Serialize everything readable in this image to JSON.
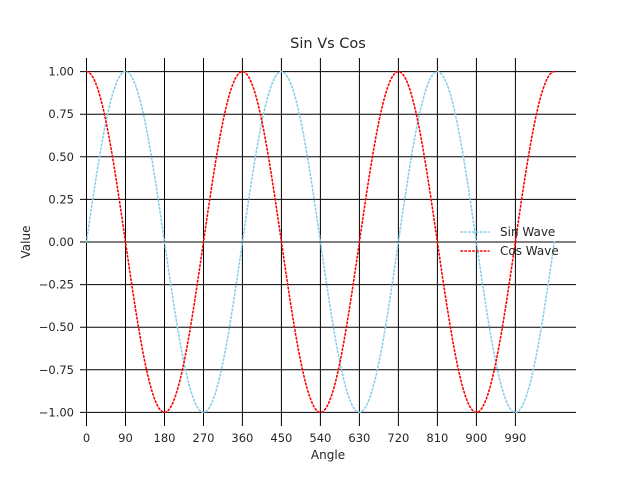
{
  "chart_data": {
    "type": "line",
    "title": "Sin Vs Cos",
    "xlabel": "Angle",
    "ylabel": "Value",
    "xlim": [
      -15,
      1130
    ],
    "ylim": [
      -1.08,
      1.08
    ],
    "xticks": [
      0,
      90,
      180,
      270,
      360,
      450,
      540,
      630,
      720,
      810,
      900,
      990
    ],
    "yticks": [
      -1.0,
      -0.75,
      -0.5,
      -0.25,
      0.0,
      0.25,
      0.5,
      0.75,
      1.0
    ],
    "ytick_labels": [
      "−1.00",
      "−0.75",
      "−0.50",
      "−0.25",
      "0.00",
      "0.25",
      "0.50",
      "0.75",
      "1.00"
    ],
    "grid": true,
    "legend": {
      "position": "right",
      "frame": false
    },
    "x_range": [
      0,
      1080
    ],
    "series": [
      {
        "name": "Sin Wave",
        "function": "sin",
        "color": "#87ceeb",
        "style": "dotted"
      },
      {
        "name": "Cos Wave",
        "function": "cos",
        "color": "#ff0000",
        "style": "dotted"
      }
    ]
  }
}
